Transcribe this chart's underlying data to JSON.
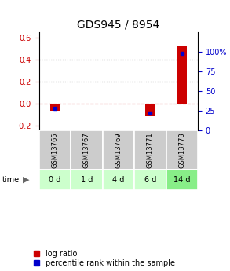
{
  "title": "GDS945 / 8954",
  "samples": [
    "GSM13765",
    "GSM13767",
    "GSM13769",
    "GSM13771",
    "GSM13773"
  ],
  "timepoints": [
    "0 d",
    "1 d",
    "4 d",
    "6 d",
    "14 d"
  ],
  "log_ratios": [
    -0.07,
    0.0,
    0.0,
    -0.12,
    0.52
  ],
  "percentiles": [
    28.0,
    0.0,
    0.0,
    22.0,
    98.0
  ],
  "ylim_left": [
    -0.25,
    0.65
  ],
  "ylim_right": [
    0,
    125
  ],
  "yticks_left": [
    -0.2,
    0.0,
    0.2,
    0.4,
    0.6
  ],
  "yticks_right": [
    0,
    25,
    50,
    75,
    100
  ],
  "hlines": [
    0.2,
    0.4
  ],
  "bar_width": 0.3,
  "color_log": "#cc0000",
  "color_pct": "#0000cc",
  "color_zero_line": "#cc0000",
  "background_plot": "#ffffff",
  "background_gsm": "#cccccc",
  "background_time_light": "#ccffcc",
  "background_time_dark": "#88ee88",
  "title_fontsize": 10,
  "tick_fontsize": 7,
  "legend_fontsize": 7,
  "green_colors": [
    "#ccffcc",
    "#ccffcc",
    "#ccffcc",
    "#ccffcc",
    "#88ee88"
  ]
}
